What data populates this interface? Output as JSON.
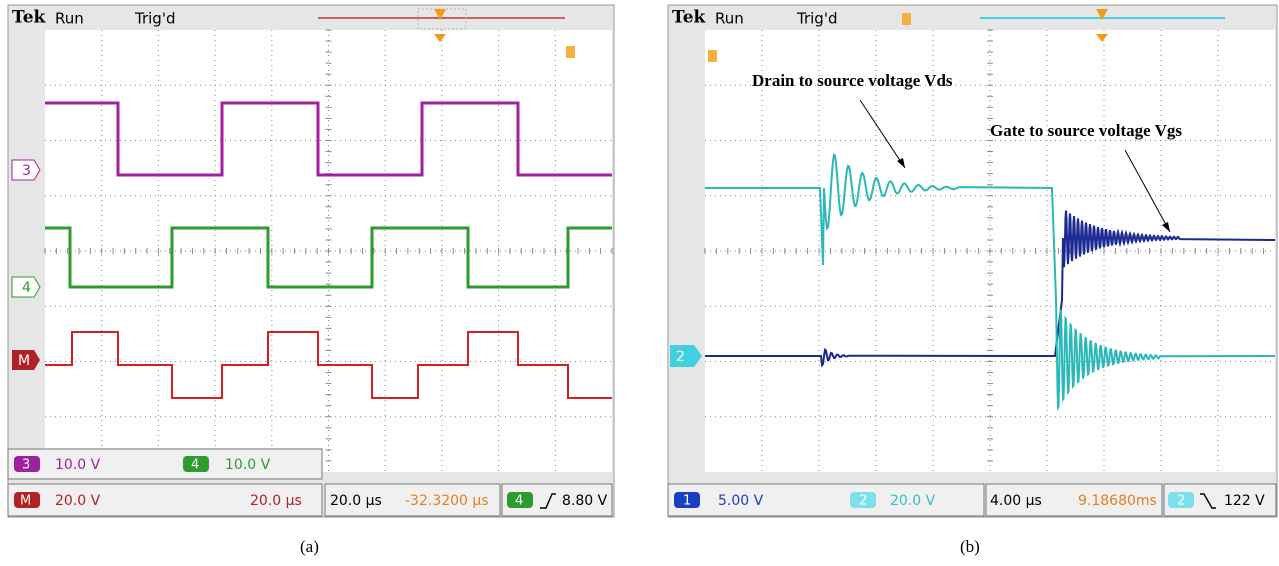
{
  "panel_a": {
    "header": {
      "brand": "Tek",
      "status": "Run",
      "trigger": "Trig'd"
    },
    "channel_markers": [
      "3",
      "4",
      "M"
    ],
    "readouts": {
      "ch3_label": "3",
      "ch3_scale": "10.0 V",
      "ch4_label": "4",
      "ch4_scale": "10.0 V",
      "math_label": "M",
      "math_scale": "20.0 V",
      "math_time": "20.0 µs",
      "timebase": "20.0 µs",
      "position": "-32.3200 µs",
      "trigger_source": "4",
      "trigger_level": "8.80 V"
    },
    "caption": "(a)"
  },
  "panel_b": {
    "header": {
      "brand": "Tek",
      "status": "Run",
      "trigger": "Trig'd"
    },
    "channel_markers": [
      "2"
    ],
    "annotations": [
      "Drain to source voltage Vds",
      "Gate to source voltage Vgs"
    ],
    "readouts": {
      "ch1_label": "1",
      "ch1_scale": "5.00 V",
      "ch2_label": "2",
      "ch2_scale": "20.0 V",
      "timebase": "4.00 µs",
      "position": "9.18680ms",
      "trigger_source": "2",
      "trigger_level": "122 V"
    },
    "caption": "(b)"
  }
}
